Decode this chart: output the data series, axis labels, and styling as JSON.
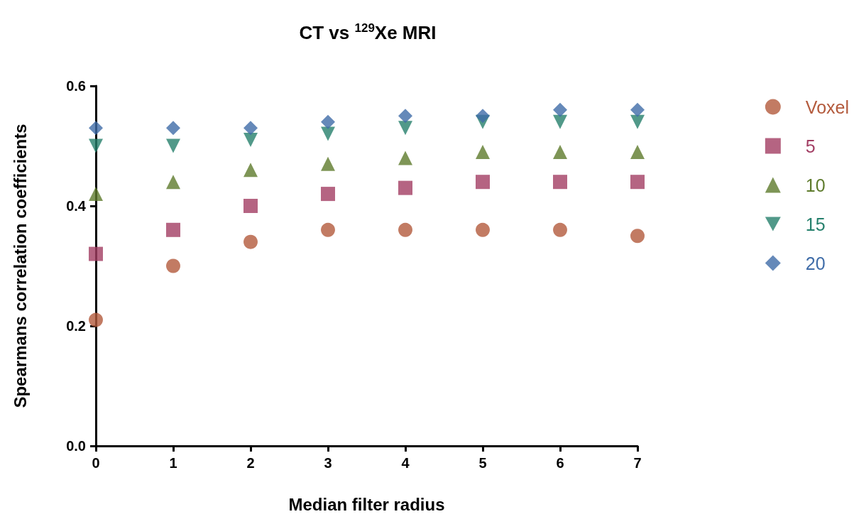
{
  "chart_data": {
    "type": "scatter",
    "title": "CT vs $^{129}$Xe MRI",
    "xlabel": "Median filter radius",
    "ylabel": "Spearmans correlation coefficients",
    "x": [
      0,
      1,
      2,
      3,
      4,
      5,
      6,
      7
    ],
    "series": [
      {
        "name": "Voxel",
        "color": "#b35a3c",
        "marker": "circle",
        "values": [
          0.21,
          0.3,
          0.34,
          0.36,
          0.36,
          0.36,
          0.36,
          0.35
        ]
      },
      {
        "name": "5",
        "color": "#a23d63",
        "marker": "square",
        "values": [
          0.32,
          0.36,
          0.4,
          0.42,
          0.43,
          0.44,
          0.44,
          0.44
        ]
      },
      {
        "name": "10",
        "color": "#5e7b2c",
        "marker": "triangle",
        "values": [
          0.42,
          0.44,
          0.46,
          0.47,
          0.48,
          0.49,
          0.49,
          0.49
        ]
      },
      {
        "name": "15",
        "color": "#25806c",
        "marker": "triangle-down",
        "values": [
          0.5,
          0.5,
          0.51,
          0.52,
          0.53,
          0.54,
          0.54,
          0.54
        ]
      },
      {
        "name": "20",
        "color": "#3f6ca8",
        "marker": "diamond",
        "values": [
          0.53,
          0.53,
          0.53,
          0.54,
          0.55,
          0.55,
          0.56,
          0.56
        ]
      }
    ],
    "xlim": [
      0,
      7
    ],
    "xticks": [
      0,
      1,
      2,
      3,
      4,
      5,
      6,
      7
    ],
    "ylim": [
      0,
      0.6
    ],
    "yticks": [
      {
        "value": 0,
        "label": "0.0"
      },
      {
        "value": 0.2,
        "label": "0.2"
      },
      {
        "value": 0.4,
        "label": "0.4"
      },
      {
        "value": 0.6,
        "label": "0.6"
      }
    ],
    "grid": false,
    "legend": "right"
  }
}
